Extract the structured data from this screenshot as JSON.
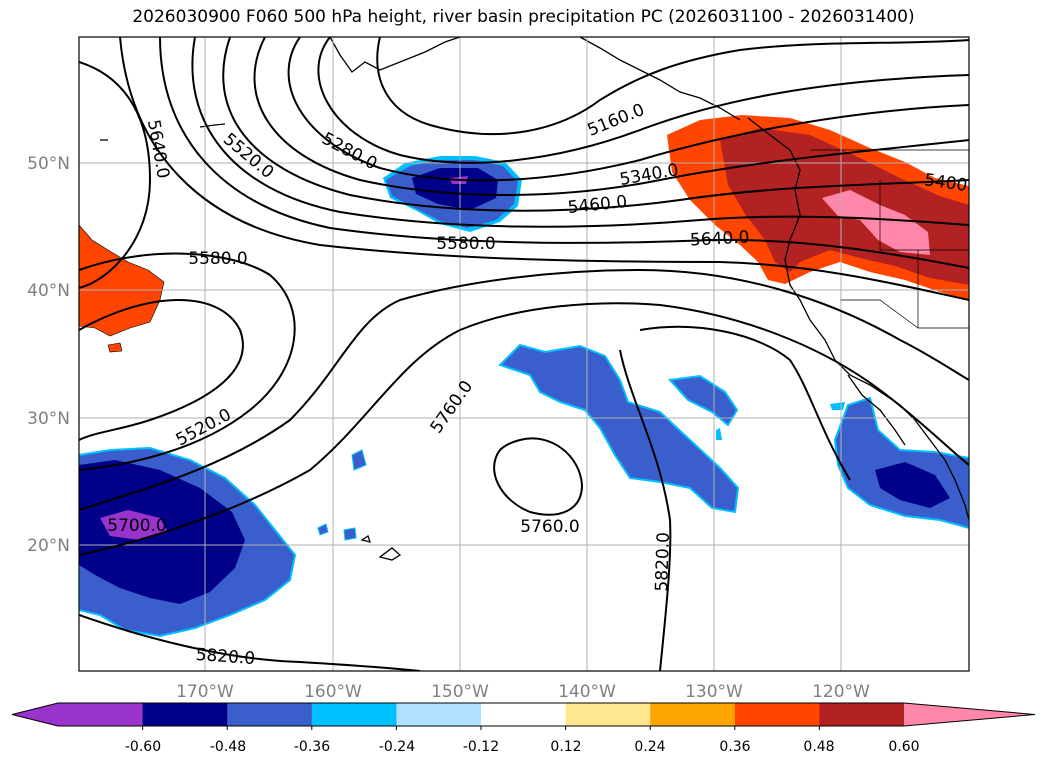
{
  "title": "2026030900 F060 500 hPa height, river basin precipitation PC (2026031100 - 2026031400)",
  "map": {
    "lat_labels": [
      "50°N",
      "40°N",
      "30°N",
      "20°N"
    ],
    "lon_labels": [
      "170°W",
      "160°W",
      "150°W",
      "140°W",
      "130°W",
      "120°W"
    ],
    "contour_labels": [
      "5640.0",
      "5520.0",
      "5280.0",
      "5160.0",
      "5340.0",
      "5460.0",
      "5580.0",
      "5640.0",
      "5400",
      "5580.0",
      "5520.0",
      "5760.0",
      "5700.0",
      "5760.0",
      "5820.0",
      "5820.0"
    ]
  },
  "colorbar": {
    "colors": [
      "#9933cc",
      "#000088",
      "#3a5fcd",
      "#00bfff",
      "#b0e2ff",
      "#ffffff",
      "#ffe88f",
      "#ffa500",
      "#ff4500",
      "#b22222",
      "#ff88aa"
    ],
    "tick_labels": [
      "-0.60",
      "-0.48",
      "-0.36",
      "-0.24",
      "-0.12",
      "0.12",
      "0.24",
      "0.36",
      "0.48",
      "0.60"
    ]
  }
}
